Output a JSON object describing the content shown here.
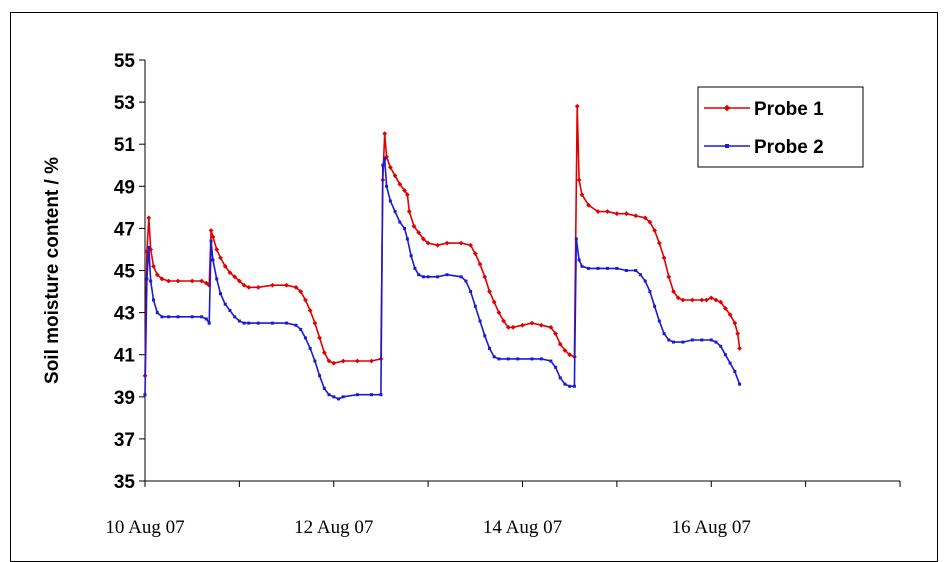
{
  "chart_data": {
    "type": "line",
    "ylabel": "Soil moisture content / %",
    "xlabel": "",
    "ylim": [
      35,
      55
    ],
    "yticks": [
      35,
      37,
      39,
      41,
      43,
      45,
      47,
      49,
      51,
      53,
      55
    ],
    "xlim": [
      0,
      8
    ],
    "xticks_major": [
      {
        "x": 0,
        "label": "10 Aug 07"
      },
      {
        "x": 2,
        "label": "12 Aug 07"
      },
      {
        "x": 4,
        "label": "14 Aug 07"
      },
      {
        "x": 6,
        "label": "16 Aug 07"
      }
    ],
    "legend": {
      "position": "top-right"
    },
    "grid": false,
    "series": [
      {
        "name": "Probe 1",
        "color": "#e00000",
        "marker": "diamond",
        "points": [
          [
            0.0,
            40.0
          ],
          [
            0.02,
            45.9
          ],
          [
            0.04,
            47.5
          ],
          [
            0.06,
            46.0
          ],
          [
            0.09,
            45.2
          ],
          [
            0.13,
            44.8
          ],
          [
            0.18,
            44.6
          ],
          [
            0.25,
            44.5
          ],
          [
            0.35,
            44.5
          ],
          [
            0.5,
            44.5
          ],
          [
            0.6,
            44.5
          ],
          [
            0.65,
            44.4
          ],
          [
            0.68,
            44.3
          ],
          [
            0.7,
            46.9
          ],
          [
            0.72,
            46.6
          ],
          [
            0.76,
            46.0
          ],
          [
            0.8,
            45.6
          ],
          [
            0.85,
            45.2
          ],
          [
            0.9,
            44.9
          ],
          [
            0.95,
            44.7
          ],
          [
            1.0,
            44.5
          ],
          [
            1.05,
            44.3
          ],
          [
            1.1,
            44.2
          ],
          [
            1.2,
            44.2
          ],
          [
            1.35,
            44.3
          ],
          [
            1.5,
            44.3
          ],
          [
            1.6,
            44.2
          ],
          [
            1.65,
            44.0
          ],
          [
            1.7,
            43.6
          ],
          [
            1.75,
            43.1
          ],
          [
            1.8,
            42.5
          ],
          [
            1.85,
            41.8
          ],
          [
            1.9,
            41.1
          ],
          [
            1.95,
            40.7
          ],
          [
            2.0,
            40.6
          ],
          [
            2.1,
            40.7
          ],
          [
            2.25,
            40.7
          ],
          [
            2.4,
            40.7
          ],
          [
            2.5,
            40.8
          ],
          [
            2.52,
            49.3
          ],
          [
            2.54,
            51.5
          ],
          [
            2.56,
            50.4
          ],
          [
            2.6,
            49.9
          ],
          [
            2.65,
            49.5
          ],
          [
            2.7,
            49.1
          ],
          [
            2.75,
            48.8
          ],
          [
            2.78,
            48.6
          ],
          [
            2.8,
            47.8
          ],
          [
            2.85,
            47.1
          ],
          [
            2.9,
            46.8
          ],
          [
            2.95,
            46.5
          ],
          [
            3.0,
            46.3
          ],
          [
            3.1,
            46.2
          ],
          [
            3.2,
            46.3
          ],
          [
            3.35,
            46.3
          ],
          [
            3.45,
            46.2
          ],
          [
            3.5,
            45.8
          ],
          [
            3.55,
            45.3
          ],
          [
            3.6,
            44.7
          ],
          [
            3.65,
            44.0
          ],
          [
            3.7,
            43.5
          ],
          [
            3.75,
            43.0
          ],
          [
            3.8,
            42.6
          ],
          [
            3.85,
            42.3
          ],
          [
            3.9,
            42.3
          ],
          [
            4.0,
            42.4
          ],
          [
            4.1,
            42.5
          ],
          [
            4.2,
            42.4
          ],
          [
            4.3,
            42.3
          ],
          [
            4.35,
            42.0
          ],
          [
            4.4,
            41.5
          ],
          [
            4.45,
            41.2
          ],
          [
            4.5,
            41.0
          ],
          [
            4.55,
            40.9
          ],
          [
            4.58,
            52.8
          ],
          [
            4.6,
            49.3
          ],
          [
            4.63,
            48.6
          ],
          [
            4.7,
            48.1
          ],
          [
            4.8,
            47.8
          ],
          [
            4.9,
            47.8
          ],
          [
            5.0,
            47.7
          ],
          [
            5.1,
            47.7
          ],
          [
            5.2,
            47.6
          ],
          [
            5.3,
            47.5
          ],
          [
            5.35,
            47.3
          ],
          [
            5.4,
            46.9
          ],
          [
            5.45,
            46.3
          ],
          [
            5.5,
            45.6
          ],
          [
            5.55,
            44.7
          ],
          [
            5.6,
            44.0
          ],
          [
            5.65,
            43.7
          ],
          [
            5.7,
            43.6
          ],
          [
            5.8,
            43.6
          ],
          [
            5.9,
            43.6
          ],
          [
            5.95,
            43.6
          ],
          [
            6.0,
            43.7
          ],
          [
            6.05,
            43.6
          ],
          [
            6.1,
            43.5
          ],
          [
            6.15,
            43.2
          ],
          [
            6.2,
            42.9
          ],
          [
            6.25,
            42.5
          ],
          [
            6.28,
            42.0
          ],
          [
            6.3,
            41.3
          ]
        ]
      },
      {
        "name": "Probe 2",
        "color": "#1a1ad6",
        "marker": "square",
        "points": [
          [
            0.0,
            39.1
          ],
          [
            0.02,
            44.6
          ],
          [
            0.04,
            46.1
          ],
          [
            0.06,
            44.5
          ],
          [
            0.09,
            43.6
          ],
          [
            0.13,
            43.0
          ],
          [
            0.18,
            42.8
          ],
          [
            0.25,
            42.8
          ],
          [
            0.35,
            42.8
          ],
          [
            0.5,
            42.8
          ],
          [
            0.6,
            42.8
          ],
          [
            0.65,
            42.7
          ],
          [
            0.68,
            42.5
          ],
          [
            0.7,
            46.4
          ],
          [
            0.72,
            45.5
          ],
          [
            0.76,
            44.6
          ],
          [
            0.8,
            43.9
          ],
          [
            0.85,
            43.4
          ],
          [
            0.9,
            43.1
          ],
          [
            0.95,
            42.8
          ],
          [
            1.0,
            42.6
          ],
          [
            1.05,
            42.5
          ],
          [
            1.1,
            42.5
          ],
          [
            1.2,
            42.5
          ],
          [
            1.35,
            42.5
          ],
          [
            1.5,
            42.5
          ],
          [
            1.6,
            42.4
          ],
          [
            1.65,
            42.2
          ],
          [
            1.7,
            41.8
          ],
          [
            1.75,
            41.3
          ],
          [
            1.8,
            40.7
          ],
          [
            1.85,
            40.0
          ],
          [
            1.9,
            39.4
          ],
          [
            1.95,
            39.1
          ],
          [
            2.0,
            39.0
          ],
          [
            2.05,
            38.9
          ],
          [
            2.1,
            39.0
          ],
          [
            2.25,
            39.1
          ],
          [
            2.4,
            39.1
          ],
          [
            2.5,
            39.1
          ],
          [
            2.52,
            50.0
          ],
          [
            2.54,
            50.3
          ],
          [
            2.56,
            49.0
          ],
          [
            2.6,
            48.3
          ],
          [
            2.65,
            47.8
          ],
          [
            2.7,
            47.3
          ],
          [
            2.75,
            47.0
          ],
          [
            2.78,
            46.5
          ],
          [
            2.82,
            45.7
          ],
          [
            2.86,
            45.1
          ],
          [
            2.9,
            44.8
          ],
          [
            2.95,
            44.7
          ],
          [
            3.0,
            44.7
          ],
          [
            3.1,
            44.7
          ],
          [
            3.2,
            44.8
          ],
          [
            3.35,
            44.7
          ],
          [
            3.4,
            44.5
          ],
          [
            3.45,
            44.0
          ],
          [
            3.5,
            43.3
          ],
          [
            3.55,
            42.6
          ],
          [
            3.6,
            41.9
          ],
          [
            3.65,
            41.3
          ],
          [
            3.7,
            40.9
          ],
          [
            3.75,
            40.8
          ],
          [
            3.85,
            40.8
          ],
          [
            3.95,
            40.8
          ],
          [
            4.1,
            40.8
          ],
          [
            4.2,
            40.8
          ],
          [
            4.3,
            40.7
          ],
          [
            4.35,
            40.4
          ],
          [
            4.4,
            39.9
          ],
          [
            4.45,
            39.6
          ],
          [
            4.5,
            39.5
          ],
          [
            4.55,
            39.5
          ],
          [
            4.57,
            46.5
          ],
          [
            4.6,
            45.5
          ],
          [
            4.63,
            45.2
          ],
          [
            4.7,
            45.1
          ],
          [
            4.8,
            45.1
          ],
          [
            4.9,
            45.1
          ],
          [
            5.0,
            45.1
          ],
          [
            5.1,
            45.0
          ],
          [
            5.2,
            45.0
          ],
          [
            5.25,
            44.8
          ],
          [
            5.3,
            44.5
          ],
          [
            5.35,
            44.0
          ],
          [
            5.4,
            43.3
          ],
          [
            5.45,
            42.6
          ],
          [
            5.5,
            42.0
          ],
          [
            5.55,
            41.7
          ],
          [
            5.6,
            41.6
          ],
          [
            5.7,
            41.6
          ],
          [
            5.8,
            41.7
          ],
          [
            5.9,
            41.7
          ],
          [
            6.0,
            41.7
          ],
          [
            6.05,
            41.6
          ],
          [
            6.1,
            41.4
          ],
          [
            6.15,
            41.0
          ],
          [
            6.2,
            40.6
          ],
          [
            6.25,
            40.2
          ],
          [
            6.3,
            39.6
          ]
        ]
      }
    ]
  }
}
